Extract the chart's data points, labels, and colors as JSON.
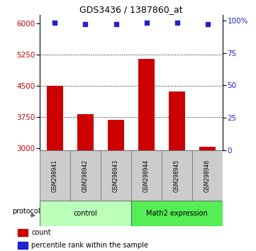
{
  "title": "GDS3436 / 1387860_at",
  "samples": [
    "GSM298941",
    "GSM298942",
    "GSM298943",
    "GSM298944",
    "GSM298945",
    "GSM298946"
  ],
  "counts": [
    4500,
    3820,
    3680,
    5150,
    4370,
    3040
  ],
  "percentile_ranks": [
    98,
    97,
    97,
    98,
    98,
    97
  ],
  "ylim_left": [
    2950,
    6200
  ],
  "ylim_right": [
    0,
    104
  ],
  "yticks_left": [
    3000,
    3750,
    4500,
    5250,
    6000
  ],
  "yticks_right": [
    0,
    25,
    50,
    75,
    100
  ],
  "ytick_labels_right": [
    "0",
    "25",
    "50",
    "75",
    "100%"
  ],
  "hlines": [
    3750,
    4500,
    5250
  ],
  "bar_color": "#cc0000",
  "dot_color": "#2222cc",
  "bar_bottom": 2950,
  "group_labels": [
    "control",
    "Math2 expression"
  ],
  "group_ranges": [
    [
      0,
      3
    ],
    [
      3,
      6
    ]
  ],
  "group_colors_light": [
    "#bbffbb",
    "#55ee55"
  ],
  "protocol_label": "protocol",
  "legend_items": [
    "count",
    "percentile rank within the sample"
  ],
  "legend_colors": [
    "#cc0000",
    "#2222cc"
  ],
  "tick_label_color_left": "#cc0000",
  "tick_label_color_right": "#2222cc",
  "bar_width": 0.55,
  "background_color": "#ffffff",
  "sample_box_color": "#cccccc"
}
